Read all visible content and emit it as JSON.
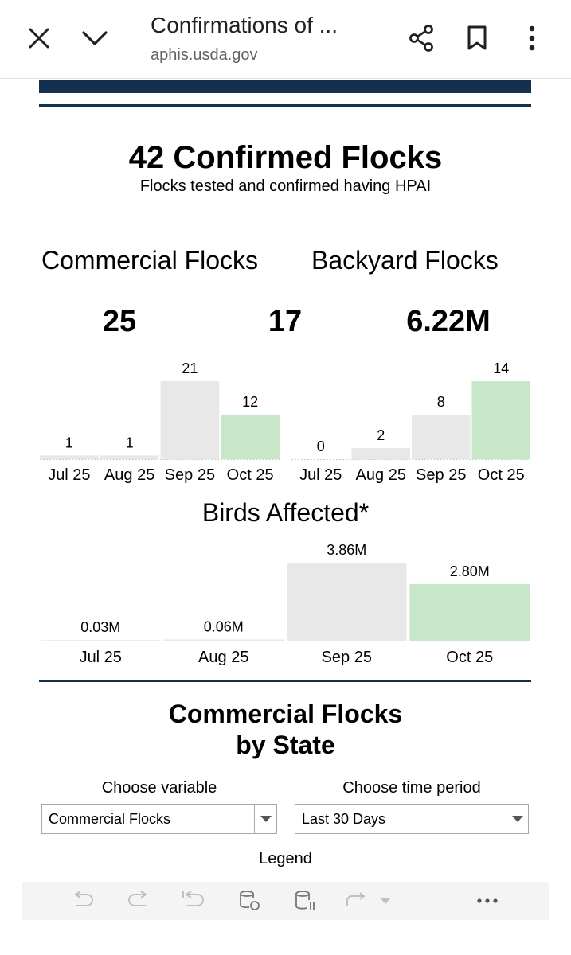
{
  "browser": {
    "title": "Confirmations of ...",
    "url": "aphis.usda.gov"
  },
  "headline": {
    "title": "42 Confirmed Flocks",
    "subtitle": "Flocks tested and confirmed having HPAI"
  },
  "sections": {
    "commercial_title": "Commercial Flocks",
    "backyard_title": "Backyard Flocks",
    "birds_title": "Birds Affected*",
    "by_state_line1": "Commercial Flocks",
    "by_state_line2": "by State"
  },
  "totals": {
    "commercial": "25",
    "backyard": "17",
    "birds": "6.22M"
  },
  "chart_data": [
    {
      "type": "bar",
      "id": "commercial",
      "categories": [
        "Jul 25",
        "Aug 25",
        "Sep 25",
        "Oct 25"
      ],
      "values": [
        1,
        1,
        21,
        12
      ],
      "labels": [
        "1",
        "1",
        "21",
        "12"
      ],
      "ylim": [
        0,
        21
      ],
      "highlight_index": 3
    },
    {
      "type": "bar",
      "id": "backyard",
      "categories": [
        "Jul 25",
        "Aug 25",
        "Sep 25",
        "Oct 25"
      ],
      "values": [
        0,
        2,
        8,
        14
      ],
      "labels": [
        "0",
        "2",
        "8",
        "14"
      ],
      "ylim": [
        0,
        14
      ],
      "highlight_index": 3
    },
    {
      "type": "bar",
      "id": "birds",
      "categories": [
        "Jul 25",
        "Aug 25",
        "Sep 25",
        "Oct 25"
      ],
      "values": [
        0.03,
        0.06,
        3.86,
        2.8
      ],
      "labels": [
        "0.03M",
        "0.06M",
        "3.86M",
        "2.80M"
      ],
      "ylim": [
        0,
        3.86
      ],
      "highlight_index": 3
    }
  ],
  "colors": {
    "bar": "#e8e8e8",
    "highlight": "#c8e6c8",
    "navy": "#14304f"
  },
  "controls": {
    "variable_label": "Choose variable",
    "variable_value": "Commercial Flocks",
    "period_label": "Choose time period",
    "period_value": "Last 30 Days",
    "legend_label": "Legend"
  },
  "toolbar": {
    "icons": [
      "undo-icon",
      "redo-icon",
      "revert-icon",
      "refresh-data-icon",
      "pause-data-icon",
      "share-view-icon",
      "share-dropdown-icon",
      "more-icon"
    ]
  }
}
